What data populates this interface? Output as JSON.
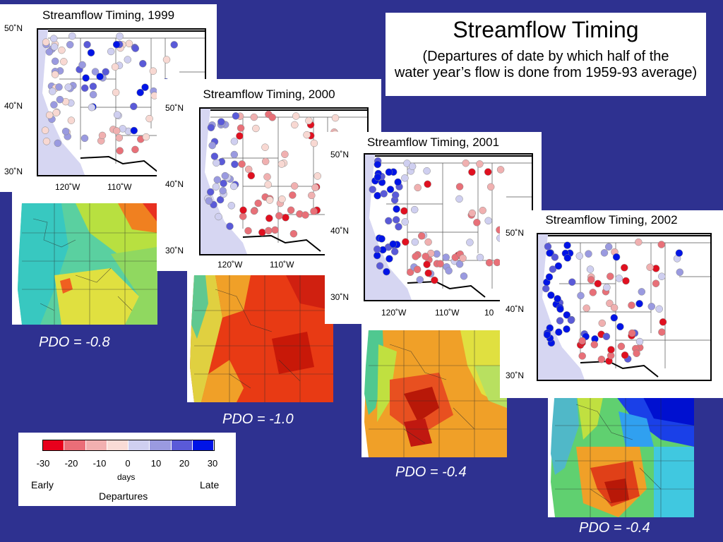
{
  "header": {
    "title": "Streamflow Timing",
    "subtitle_line1": "(Departures of date by which half of the",
    "subtitle_line2": "water year’s flow is done from 1959-93 average)"
  },
  "panels": [
    {
      "title": "Streamflow Timing, 1999",
      "lat_labels": [
        "50˚N",
        "40˚N",
        "30˚N"
      ],
      "lon_labels": [
        "120˚W",
        "110˚W"
      ],
      "pdo": "PDO = -0.8"
    },
    {
      "title": "Streamflow Timing, 2000",
      "lat_labels": [
        "50˚N",
        "40˚N",
        "30˚N"
      ],
      "lon_labels": [
        "120˚W",
        "110˚W"
      ],
      "pdo": "PDO = -1.0"
    },
    {
      "title": "Streamflow Timing, 2001",
      "lat_labels": [
        "50˚N",
        "40˚N",
        "30˚N"
      ],
      "lon_labels": [
        "120˚W",
        "110˚W",
        "10"
      ],
      "pdo": "PDO = -0.4"
    },
    {
      "title": "Streamflow Timing, 2002",
      "lat_labels": [
        "50˚N",
        "40˚N",
        "30˚N"
      ],
      "lon_labels": [],
      "pdo": "PDO = -0.4"
    }
  ],
  "legend": {
    "ticks": [
      "-30",
      "-20",
      "-10",
      "0",
      "10",
      "20",
      "30"
    ],
    "units": "days",
    "early": "Early",
    "late": "Late",
    "title": "Departures",
    "colors": [
      "#e8001c",
      "#ea6e78",
      "#f2b0b0",
      "#fadcd6",
      "#cfcff0",
      "#9a9ae0",
      "#5a5ad8",
      "#0014e6"
    ]
  },
  "colors": {
    "background": "#2e3190",
    "ocean": "#d6d6f2"
  }
}
